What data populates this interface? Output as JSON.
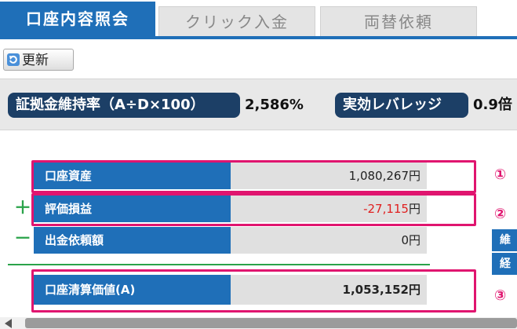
{
  "tabs": [
    {
      "label": "口座内容照会",
      "active": true
    },
    {
      "label": "クリック入金",
      "active": false
    },
    {
      "label": "両替依頼",
      "active": false
    }
  ],
  "refresh_label": "更新",
  "summary": {
    "margin_ratio_label": "証拠金維持率（A÷D×100）",
    "margin_ratio_value": "2,586%",
    "leverage_label": "実効レバレッジ",
    "leverage_value": "0.9倍"
  },
  "rows": [
    {
      "label": "口座資産",
      "value": "1,080,267",
      "unit": "円",
      "sign": ""
    },
    {
      "label": "評価損益",
      "value": "-27,115",
      "unit": "円",
      "sign": "＋"
    },
    {
      "label": "出金依頼額",
      "value": "0",
      "unit": "円",
      "sign": "－"
    },
    {
      "label": "口座清算価値(A)",
      "value": "1,053,152",
      "unit": "円",
      "sign": ""
    }
  ],
  "markers": [
    "①",
    "②",
    "③"
  ],
  "side_tabs": [
    "維",
    "経"
  ],
  "colors": {
    "accent": "#1f6fb8",
    "highlight": "#e0156f",
    "negative": "#e02020",
    "plus_minus": "#2aa34a"
  }
}
